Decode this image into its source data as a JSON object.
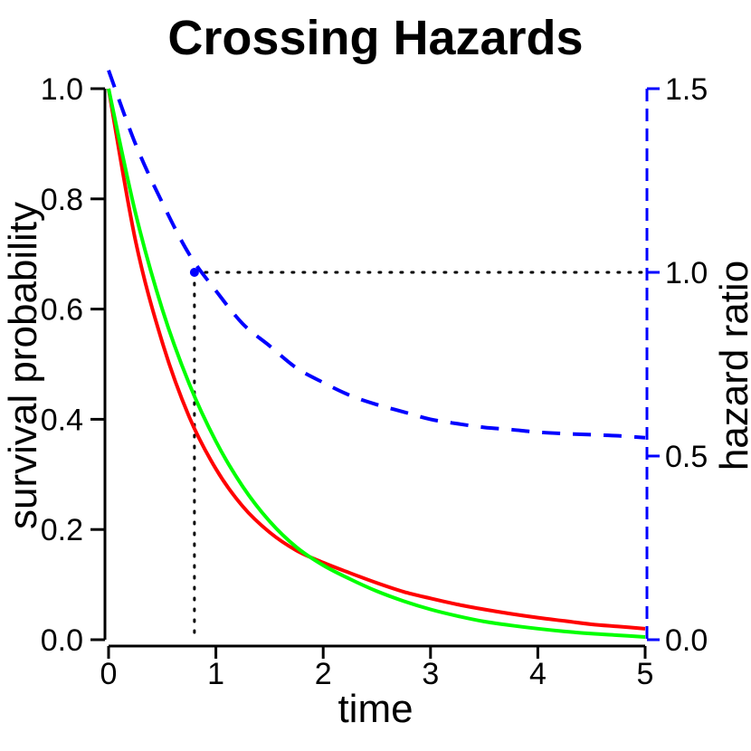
{
  "chart_data": {
    "type": "line",
    "title": "Crossing Hazards",
    "xlabel": "time",
    "ylabel": "survival probability",
    "y2label": "hazard ratio",
    "xlim": [
      0,
      5
    ],
    "ylim": [
      0,
      1
    ],
    "y2lim": [
      0,
      1.5
    ],
    "x_ticks": [
      "0",
      "1",
      "2",
      "3",
      "4",
      "5"
    ],
    "y_ticks": [
      "0.0",
      "0.2",
      "0.4",
      "0.6",
      "0.8",
      "1.0"
    ],
    "y2_ticks": [
      "0.0",
      "0.5",
      "1.0",
      "1.5"
    ],
    "grid": false,
    "colors": {
      "red": "#ff0000",
      "green": "#00ff00",
      "blue": "#0000ff",
      "black": "#000000"
    },
    "series": [
      {
        "axis": "left",
        "color": "#ff0000",
        "style": "solid",
        "x": [
          0,
          0.25,
          0.5,
          0.75,
          1,
          1.25,
          1.5,
          1.75,
          2,
          2.25,
          2.5,
          2.75,
          3,
          3.25,
          3.5,
          3.75,
          4,
          4.25,
          4.5,
          4.75,
          5
        ],
        "values": [
          1.0,
          0.725,
          0.54,
          0.405,
          0.31,
          0.242,
          0.195,
          0.162,
          0.14,
          0.121,
          0.103,
          0.087,
          0.075,
          0.064,
          0.055,
          0.047,
          0.04,
          0.034,
          0.028,
          0.024,
          0.02
        ]
      },
      {
        "axis": "left",
        "color": "#00ff00",
        "style": "solid",
        "x": [
          0,
          0.25,
          0.5,
          0.75,
          1,
          1.25,
          1.5,
          1.75,
          2,
          2.25,
          2.5,
          2.75,
          3,
          3.25,
          3.5,
          3.75,
          4,
          4.25,
          4.5,
          4.75,
          5
        ],
        "values": [
          1.0,
          0.775,
          0.6,
          0.465,
          0.36,
          0.278,
          0.215,
          0.168,
          0.135,
          0.11,
          0.088,
          0.07,
          0.055,
          0.043,
          0.033,
          0.026,
          0.02,
          0.015,
          0.011,
          0.008,
          0.005
        ]
      },
      {
        "axis": "right",
        "color": "#0000ff",
        "style": "dashed",
        "x": [
          0,
          0.25,
          0.5,
          0.75,
          1,
          1.25,
          1.5,
          1.75,
          2,
          2.25,
          2.5,
          2.75,
          3,
          3.25,
          3.5,
          3.75,
          4,
          4.25,
          4.5,
          4.75,
          5
        ],
        "values": [
          1.55,
          1.35,
          1.19,
          1.05,
          0.95,
          0.86,
          0.8,
          0.74,
          0.7,
          0.665,
          0.64,
          0.62,
          0.6,
          0.588,
          0.578,
          0.572,
          0.565,
          0.561,
          0.558,
          0.555,
          0.55
        ]
      }
    ],
    "annotations": [
      {
        "type": "reference-point",
        "axis": "right",
        "x": 0.8,
        "y": 1.0,
        "color": "#0000ff",
        "guides": "dotted",
        "guide_color": "#000000"
      }
    ]
  }
}
